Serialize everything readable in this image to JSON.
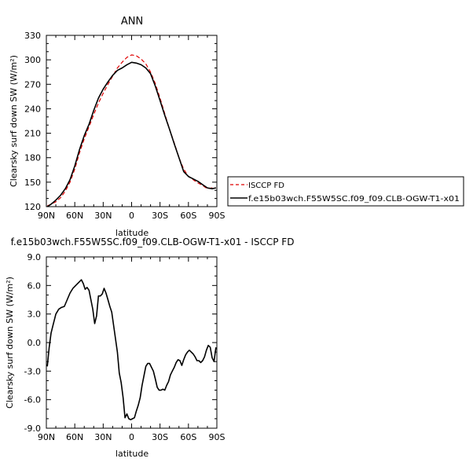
{
  "chart_data": [
    {
      "type": "line",
      "title": "ANN",
      "xlabel": "latitude",
      "ylabel": "Clearsky surf down SW (W/m²)",
      "xlim": [
        -90,
        90
      ],
      "ylim": [
        120,
        330
      ],
      "xticks": [
        -90,
        -60,
        -30,
        0,
        30,
        60,
        90
      ],
      "xtick_labels": [
        "90N",
        "60N",
        "30N",
        "0",
        "30S",
        "60S",
        "90S"
      ],
      "yticks": [
        120,
        150,
        180,
        210,
        240,
        270,
        300,
        330
      ],
      "ytick_labels": [
        "120",
        "150",
        "180",
        "210",
        "240",
        "270",
        "300",
        "330"
      ],
      "legend_position": "right",
      "series": [
        {
          "name": "ISCCP FD",
          "color": "#e00000",
          "dash": true,
          "x": [
            -89,
            -85,
            -80,
            -75,
            -70,
            -65,
            -60,
            -55,
            -50,
            -45,
            -40,
            -35,
            -30,
            -25,
            -20,
            -15,
            -10,
            -5,
            0,
            5,
            10,
            15,
            20,
            25,
            30,
            35,
            40,
            45,
            50,
            55,
            60,
            65,
            70,
            75,
            80,
            85,
            89
          ],
          "y": [
            121,
            123,
            126,
            131,
            139,
            150,
            166,
            186,
            203,
            218,
            233,
            247,
            259,
            270,
            280,
            290,
            297,
            303,
            306,
            305,
            301,
            295,
            285,
            271,
            253,
            234,
            215,
            198,
            180,
            166,
            157,
            153,
            149,
            146,
            142,
            143,
            143
          ]
        },
        {
          "name": "f.e15b03wch.F55W5SC.f09_f09.CLB-OGW-T1-x01",
          "color": "#000000",
          "dash": false,
          "x": [
            -89,
            -85,
            -80,
            -75,
            -70,
            -65,
            -60,
            -55,
            -50,
            -45,
            -40,
            -35,
            -30,
            -25,
            -20,
            -15,
            -10,
            -5,
            0,
            5,
            10,
            15,
            20,
            25,
            30,
            35,
            40,
            45,
            50,
            55,
            60,
            65,
            70,
            75,
            80,
            85,
            89
          ],
          "y": [
            120,
            123,
            128,
            134,
            142,
            153,
            170,
            190,
            207,
            221,
            238,
            253,
            264,
            273,
            281,
            287,
            290,
            294,
            297,
            296,
            294,
            290,
            283,
            268,
            250,
            232,
            215,
            197,
            180,
            163,
            157,
            154,
            151,
            147,
            143,
            142,
            143
          ]
        }
      ]
    },
    {
      "type": "line",
      "title": "f.e15b03wch.F55W5SC.f09_f09.CLB-OGW-T1-x01 - ISCCP FD",
      "xlabel": "latitude",
      "ylabel": "Clearsky surf down SW (W/m²)",
      "xlim": [
        -90,
        90
      ],
      "ylim": [
        -9,
        9
      ],
      "xticks": [
        -90,
        -60,
        -30,
        0,
        30,
        60,
        90
      ],
      "xtick_labels": [
        "90N",
        "60N",
        "30N",
        "0",
        "30S",
        "60S",
        "90S"
      ],
      "yticks": [
        -9,
        -6,
        -3,
        0,
        3,
        6,
        9
      ],
      "ytick_labels": [
        "-9.0",
        "-6.0",
        "-3.0",
        "0.0",
        "3.0",
        "6.0",
        "9.0"
      ],
      "series": [
        {
          "color": "#000000",
          "x": [
            -89,
            -87,
            -85,
            -83,
            -80,
            -77,
            -74,
            -71,
            -68,
            -65,
            -62,
            -59,
            -56,
            -53,
            -51,
            -49,
            -47,
            -45,
            -43,
            -41,
            -39,
            -37,
            -35,
            -33,
            -31,
            -29,
            -27,
            -25,
            -23,
            -21,
            -19,
            -17,
            -15,
            -13,
            -11,
            -9,
            -7,
            -5,
            -3,
            -1,
            1,
            3,
            5,
            7,
            9,
            11,
            13,
            15,
            17,
            19,
            21,
            23,
            25,
            27,
            29,
            31,
            33,
            35,
            37,
            39,
            41,
            43,
            45,
            47,
            49,
            51,
            53,
            55,
            57,
            59,
            61,
            63,
            65,
            67,
            69,
            71,
            73,
            75,
            77,
            79,
            81,
            83,
            85,
            87,
            89
          ],
          "y": [
            -2.5,
            -0.5,
            1.0,
            1.8,
            3.0,
            3.5,
            3.7,
            3.8,
            4.5,
            5.2,
            5.7,
            6.0,
            6.3,
            6.6,
            6.2,
            5.6,
            5.8,
            5.5,
            4.5,
            3.5,
            2.0,
            2.8,
            4.9,
            4.9,
            5.1,
            5.7,
            5.2,
            4.5,
            3.8,
            3.2,
            1.8,
            0.4,
            -1.0,
            -3.2,
            -4.2,
            -5.8,
            -7.9,
            -7.5,
            -8.0,
            -8.1,
            -8.0,
            -7.9,
            -7.2,
            -6.6,
            -5.8,
            -4.5,
            -3.5,
            -2.5,
            -2.2,
            -2.2,
            -2.6,
            -3.0,
            -3.8,
            -4.7,
            -5.0,
            -5.0,
            -4.9,
            -5.0,
            -4.5,
            -4.1,
            -3.4,
            -3.0,
            -2.6,
            -2.1,
            -1.8,
            -1.9,
            -2.4,
            -1.8,
            -1.3,
            -1.0,
            -0.8,
            -1.0,
            -1.2,
            -1.5,
            -1.9,
            -1.9,
            -2.1,
            -1.9,
            -1.5,
            -0.8,
            -0.3,
            -0.5,
            -1.6,
            -2.0,
            -0.5
          ]
        }
      ]
    }
  ]
}
